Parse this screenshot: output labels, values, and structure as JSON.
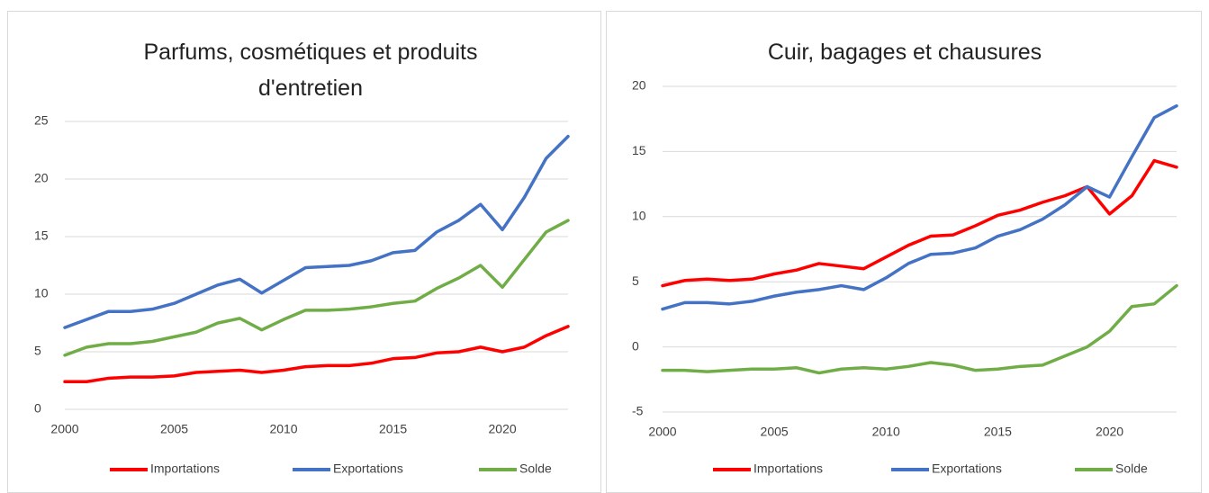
{
  "chart_data": [
    {
      "type": "line",
      "title": "Parfums, cosmétiques et produits d'entretien",
      "x": [
        2000,
        2001,
        2002,
        2003,
        2004,
        2005,
        2006,
        2007,
        2008,
        2009,
        2010,
        2011,
        2012,
        2013,
        2014,
        2015,
        2016,
        2017,
        2018,
        2019,
        2020,
        2021,
        2022,
        2023
      ],
      "xlim": [
        2000,
        2023
      ],
      "xticks": [
        2000,
        2005,
        2010,
        2015,
        2020
      ],
      "ylim": [
        0,
        25
      ],
      "yticks": [
        0,
        5,
        10,
        15,
        20,
        25
      ],
      "grid": true,
      "legend": "bottom",
      "series": [
        {
          "name": "Importations",
          "color": "#ff0000",
          "values": [
            2.4,
            2.4,
            2.7,
            2.8,
            2.8,
            2.9,
            3.2,
            3.3,
            3.4,
            3.2,
            3.4,
            3.7,
            3.8,
            3.8,
            4.0,
            4.4,
            4.5,
            4.9,
            5.0,
            5.4,
            5.0,
            5.4,
            6.4,
            7.2
          ]
        },
        {
          "name": "Exportations",
          "color": "#4472c4",
          "values": [
            7.1,
            7.8,
            8.5,
            8.5,
            8.7,
            9.2,
            10.0,
            10.8,
            11.3,
            10.1,
            11.2,
            12.3,
            12.4,
            12.5,
            12.9,
            13.6,
            13.8,
            15.4,
            16.4,
            17.8,
            15.6,
            18.4,
            21.8,
            23.7
          ]
        },
        {
          "name": "Solde",
          "color": "#70ad47",
          "values": [
            4.7,
            5.4,
            5.7,
            5.7,
            5.9,
            6.3,
            6.7,
            7.5,
            7.9,
            6.9,
            7.8,
            8.6,
            8.6,
            8.7,
            8.9,
            9.2,
            9.4,
            10.5,
            11.4,
            12.5,
            10.6,
            13.0,
            15.4,
            16.4
          ]
        }
      ]
    },
    {
      "type": "line",
      "title": "Cuir, bagages et chausures",
      "x": [
        2000,
        2001,
        2002,
        2003,
        2004,
        2005,
        2006,
        2007,
        2008,
        2009,
        2010,
        2011,
        2012,
        2013,
        2014,
        2015,
        2016,
        2017,
        2018,
        2019,
        2020,
        2021,
        2022,
        2023
      ],
      "xlim": [
        2000,
        2023
      ],
      "xticks": [
        2000,
        2005,
        2010,
        2015,
        2020
      ],
      "ylim": [
        -5,
        20
      ],
      "yticks": [
        -5,
        0,
        5,
        10,
        15,
        20
      ],
      "grid": true,
      "legend": "bottom",
      "series": [
        {
          "name": "Importations",
          "color": "#ff0000",
          "values": [
            4.7,
            5.1,
            5.2,
            5.1,
            5.2,
            5.6,
            5.9,
            6.4,
            6.2,
            6.0,
            6.9,
            7.8,
            8.5,
            8.6,
            9.3,
            10.1,
            10.5,
            11.1,
            11.6,
            12.3,
            10.2,
            11.6,
            14.3,
            13.8
          ]
        },
        {
          "name": "Exportations",
          "color": "#4472c4",
          "values": [
            2.9,
            3.4,
            3.4,
            3.3,
            3.5,
            3.9,
            4.2,
            4.4,
            4.7,
            4.4,
            5.3,
            6.4,
            7.1,
            7.2,
            7.6,
            8.5,
            9.0,
            9.8,
            10.9,
            12.3,
            11.5,
            14.6,
            17.6,
            18.5
          ]
        },
        {
          "name": "Solde",
          "color": "#70ad47",
          "values": [
            -1.8,
            -1.8,
            -1.9,
            -1.8,
            -1.7,
            -1.7,
            -1.6,
            -2.0,
            -1.7,
            -1.6,
            -1.7,
            -1.5,
            -1.2,
            -1.4,
            -1.8,
            -1.7,
            -1.5,
            -1.4,
            -0.7,
            0.0,
            1.2,
            3.1,
            3.3,
            4.7
          ]
        }
      ]
    }
  ]
}
